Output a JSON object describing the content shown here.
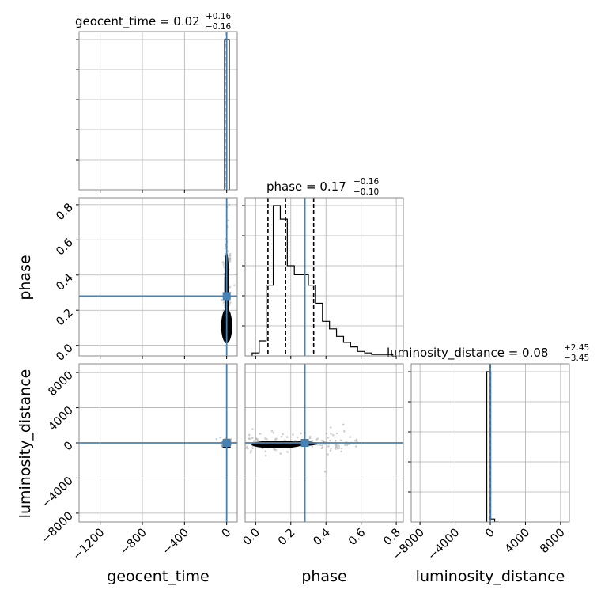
{
  "chart_data": {
    "type": "corner",
    "parameters": [
      {
        "name": "geocent_time",
        "median": 0.02,
        "plus": 0.16,
        "minus": 0.16,
        "title": "geocent_time = 0.02",
        "title_plus": "+0.16",
        "title_minus": "−0.16",
        "range": [
          -1400,
          100
        ],
        "ticks": [
          -1200,
          -800,
          -400,
          0
        ],
        "tick_labels": [
          "−1200",
          "−800",
          "−400",
          "0"
        ],
        "truth": 0
      },
      {
        "name": "phase",
        "median": 0.17,
        "plus": 0.16,
        "minus": 0.1,
        "title": "phase = 0.17",
        "title_plus": "+0.16",
        "title_minus": "−0.10",
        "range": [
          -0.06,
          0.84
        ],
        "ticks": [
          0.0,
          0.2,
          0.4,
          0.6,
          0.8
        ],
        "tick_labels": [
          "0.0",
          "0.2",
          "0.4",
          "0.6",
          "0.8"
        ],
        "truth": 0.28,
        "quantiles": [
          0.07,
          0.17,
          0.33
        ]
      },
      {
        "name": "luminosity_distance",
        "median": 0.08,
        "plus": 2.45,
        "minus": 3.45,
        "title": "luminosity_distance = 0.08",
        "title_plus": "+2.45",
        "title_minus": "−3.45",
        "range": [
          -9000,
          9000
        ],
        "ticks": [
          -8000,
          -4000,
          0,
          4000,
          8000
        ],
        "tick_labels": [
          "−8000",
          "−4000",
          "0",
          "4000",
          "8000"
        ],
        "truth": 0
      }
    ],
    "histograms": {
      "geocent_time": {
        "bin_edges": [
          -20,
          25
        ],
        "heights": [
          1.0
        ]
      },
      "phase": {
        "bin_edges": [
          -0.02,
          0.02,
          0.06,
          0.1,
          0.14,
          0.18,
          0.22,
          0.26,
          0.3,
          0.34,
          0.38,
          0.42,
          0.46,
          0.5,
          0.54,
          0.58,
          0.62,
          0.66,
          0.7,
          0.74,
          0.78
        ],
        "heights": [
          0.02,
          0.1,
          0.47,
          1.0,
          0.91,
          0.6,
          0.54,
          0.54,
          0.47,
          0.35,
          0.23,
          0.18,
          0.13,
          0.09,
          0.06,
          0.03,
          0.02,
          0.01,
          0.01,
          0.01
        ]
      },
      "luminosity_distance": {
        "bin_edges": [
          -400,
          50,
          500,
          950
        ],
        "heights": [
          1.0,
          0.02,
          0.0
        ]
      }
    },
    "axis_labels": {
      "x": [
        "geocent_time",
        "phase",
        "luminosity_distance"
      ],
      "y": [
        "phase",
        "luminosity_distance"
      ]
    },
    "grid": true,
    "colors": {
      "truth": "#4682b4",
      "hist": "#000000",
      "grid": "#b0b0b0",
      "scatter": "#a0a0a0"
    }
  }
}
